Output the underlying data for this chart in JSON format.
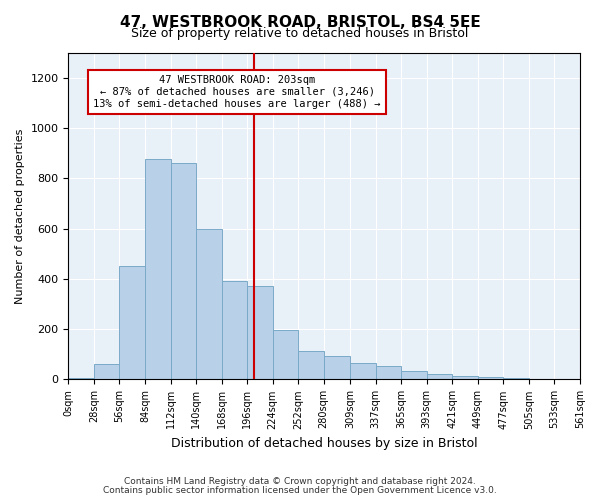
{
  "title": "47, WESTBROOK ROAD, BRISTOL, BS4 5EE",
  "subtitle": "Size of property relative to detached houses in Bristol",
  "xlabel": "Distribution of detached houses by size in Bristol",
  "ylabel": "Number of detached properties",
  "bin_edges": [
    0,
    28,
    56,
    84,
    112,
    140,
    168,
    196,
    224,
    252,
    280,
    309,
    337,
    365,
    393,
    421,
    449,
    477,
    505,
    533,
    561
  ],
  "bar_heights": [
    5,
    60,
    450,
    875,
    860,
    600,
    390,
    370,
    195,
    115,
    95,
    65,
    55,
    35,
    20,
    15,
    10,
    5,
    3,
    2
  ],
  "bar_color": "#b8d0e8",
  "bar_edge_color": "#7aaac8",
  "vline_x": 203,
  "vline_color": "#cc0000",
  "annotation_line1": "47 WESTBROOK ROAD: 203sqm",
  "annotation_line2": "← 87% of detached houses are smaller (3,246)",
  "annotation_line3": "13% of semi-detached houses are larger (488) →",
  "annotation_box_color": "#cc0000",
  "ylim": [
    0,
    1300
  ],
  "yticks": [
    0,
    200,
    400,
    600,
    800,
    1000,
    1200
  ],
  "background_color": "#e8f0f8",
  "footer_line1": "Contains HM Land Registry data © Crown copyright and database right 2024.",
  "footer_line2": "Contains public sector information licensed under the Open Government Licence v3.0."
}
